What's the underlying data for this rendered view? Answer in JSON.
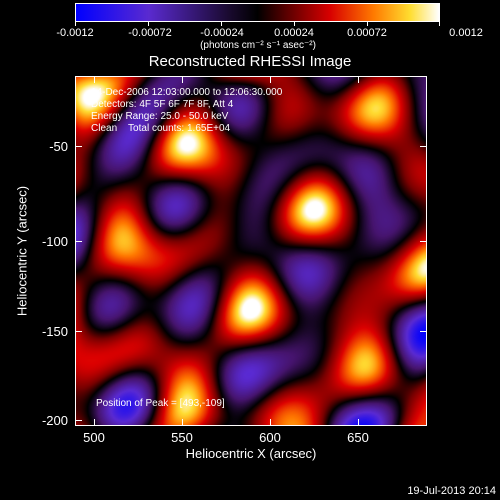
{
  "colorbar": {
    "tick_labels": [
      "-0.0012",
      "-0.00072",
      "-0.00024",
      "0.00024",
      "0.00072",
      "0.0012"
    ],
    "units": "(photons cm⁻² s⁻¹ asec⁻²)",
    "range": [
      -0.0012,
      0.0012
    ]
  },
  "title": "Reconstructed RHESSI Image",
  "annotations": {
    "time_range": "14-Dec-2006 12:03:00.000 to 12:06:30.000",
    "detectors": "Detectors: 4F 5F 6F 7F 8F, Att 4",
    "energy_range": "Energy Range: 25.0 - 50.0 keV",
    "method_counts": "Clean    Total counts: 1.65E+04",
    "peak_position": "Position of Peak = [493,-109]"
  },
  "axes": {
    "x_label": "Heliocentric X (arcsec)",
    "y_label": "Heliocentric Y (arcsec)",
    "x_ticks": [
      "500",
      "550",
      "600",
      "650"
    ],
    "y_ticks": [
      "-50",
      "-100",
      "-150",
      "-200"
    ],
    "x_range": [
      488,
      687
    ],
    "y_range": [
      -203,
      -17
    ]
  },
  "footer": {
    "date": "19-Jul-2013 20:14"
  }
}
